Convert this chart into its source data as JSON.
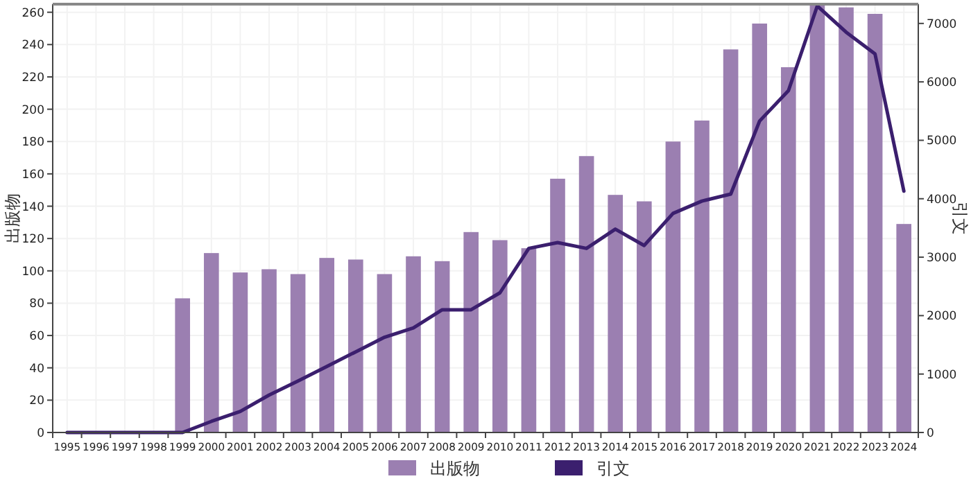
{
  "chart_data": {
    "type": "bar",
    "categories": [
      "1995",
      "1996",
      "1997",
      "1998",
      "1999",
      "2000",
      "2001",
      "2002",
      "2003",
      "2004",
      "2005",
      "2006",
      "2007",
      "2008",
      "2009",
      "2010",
      "2011",
      "2012",
      "2013",
      "2014",
      "2015",
      "2016",
      "2017",
      "2018",
      "2019",
      "2020",
      "2021",
      "2022",
      "2023",
      "2024"
    ],
    "series": [
      {
        "name": "出版物",
        "color": "#9b7fb1",
        "values": [
          null,
          0,
          0,
          0,
          83,
          111,
          99,
          101,
          98,
          108,
          107,
          98,
          109,
          106,
          124,
          119,
          114,
          157,
          171,
          147,
          143,
          180,
          193,
          237,
          253,
          226,
          265,
          263,
          259,
          129
        ]
      },
      {
        "name": "引文",
        "type": "line",
        "axis": "y2",
        "color": "#3b1f6e",
        "values": [
          0,
          0,
          0,
          0,
          0,
          190,
          360,
          640,
          880,
          1130,
          1380,
          1630,
          1790,
          2100,
          2100,
          2390,
          3150,
          3250,
          3150,
          3480,
          3200,
          3750,
          3960,
          4080,
          5330,
          5850,
          7300,
          6850,
          6480,
          4130
        ]
      }
    ],
    "ylabel": "出版物",
    "y2label": "引文",
    "ylim": [
      0,
      265
    ],
    "yticks": [
      0,
      20,
      40,
      60,
      80,
      100,
      120,
      140,
      160,
      180,
      200,
      220,
      240,
      260
    ],
    "y2lim": [
      0,
      7330
    ],
    "y2ticks": [
      0,
      1000,
      2000,
      3000,
      4000,
      5000,
      6000,
      7000
    ],
    "grid": true,
    "legend": "bottom",
    "marker": "none",
    "line_style": "solid"
  }
}
